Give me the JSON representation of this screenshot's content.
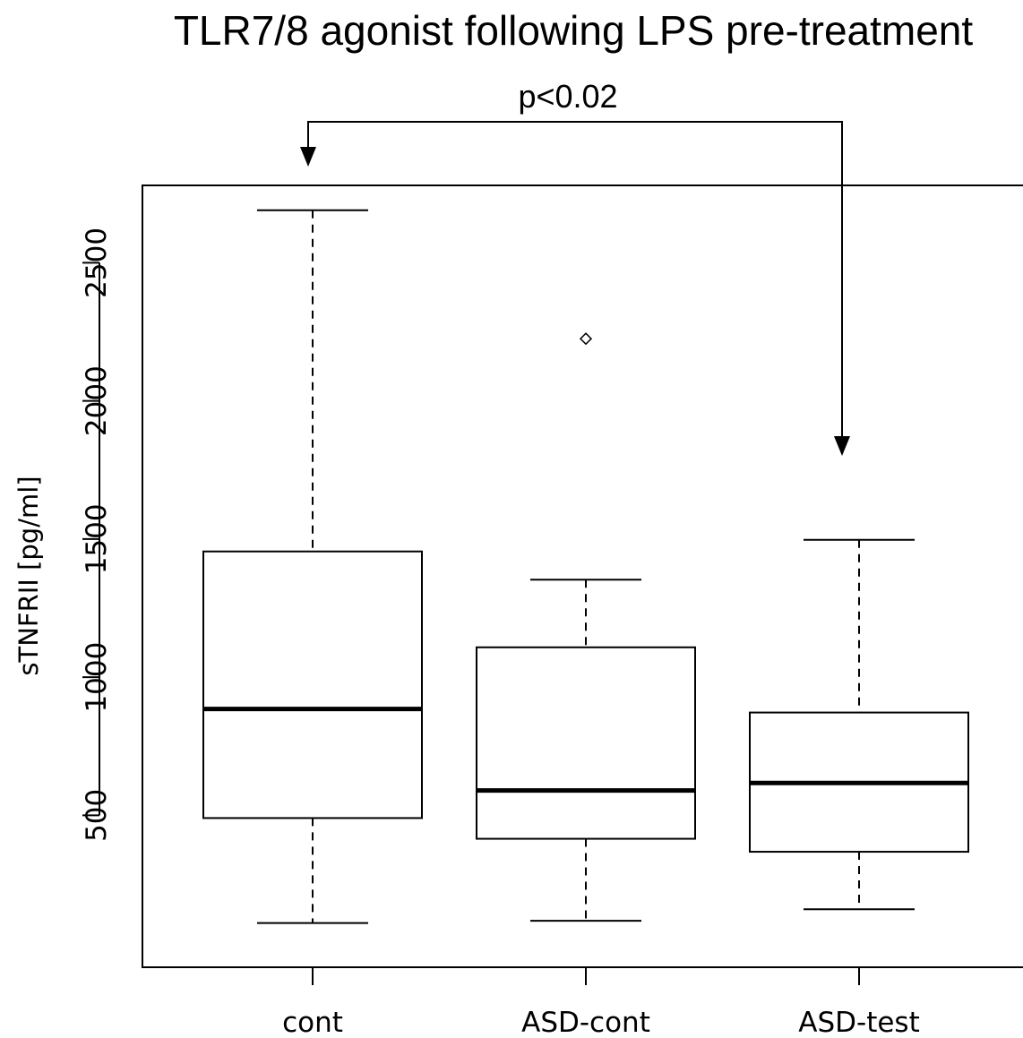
{
  "chart_data": {
    "type": "boxplot",
    "title": "TLR7/8 agonist following LPS pre-treatment",
    "xlabel": "",
    "ylabel": "sTNFRII [pg/ml]",
    "ylim": [
      -50,
      2780
    ],
    "y_ticks": [
      500,
      1000,
      1500,
      2000,
      2500
    ],
    "y_tick_labels": [
      "500",
      "1000",
      "1500",
      "2000",
      "2500"
    ],
    "categories": [
      "cont",
      "ASD-cont",
      "ASD-test"
    ],
    "boxes": [
      {
        "label": "cont",
        "whisker_low": 110,
        "q1": 490,
        "median": 885,
        "q3": 1455,
        "whisker_high": 2690,
        "outliers": []
      },
      {
        "label": "ASD-cont",
        "whisker_low": 118,
        "q1": 415,
        "median": 590,
        "q3": 1108,
        "whisker_high": 1353,
        "outliers": [
          2225
        ]
      },
      {
        "label": "ASD-test",
        "whisker_low": 160,
        "q1": 368,
        "median": 617,
        "q3": 872,
        "whisker_high": 1497,
        "outliers": []
      }
    ],
    "grid": false,
    "legend": "none",
    "annotation": {
      "text": "p<0.02",
      "from": "cont",
      "to": "ASD-test",
      "arrow_tip_values": [
        2780,
        1830
      ]
    }
  }
}
